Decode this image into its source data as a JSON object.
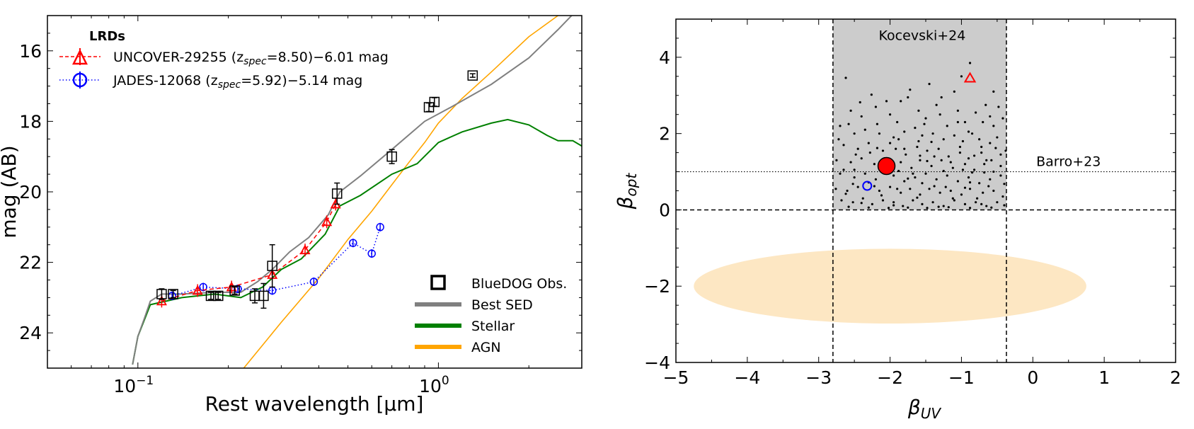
{
  "chart_data": [
    {
      "type": "line",
      "xlabel": "Rest wavelength [μm]",
      "ylabel": "mag (AB)",
      "xscale": "log",
      "xlim": [
        0.05,
        3.0
      ],
      "ylim": [
        25,
        15
      ],
      "yticks": [
        "16",
        "18",
        "20",
        "22",
        "24"
      ],
      "xticks": [
        {
          "v": 0.1,
          "label": "10",
          "exp": "−1"
        },
        {
          "v": 1.0,
          "label": "10",
          "exp": "0"
        }
      ],
      "legend_top": {
        "title": "LRDs",
        "entries": [
          {
            "pre": "UNCOVER-29255 (z",
            "sub": "spec",
            "post": "=8.50)−6.01 mag",
            "color": "#ff0000"
          },
          {
            "pre": "JADES-12068 (z",
            "sub": "spec",
            "post": "=5.92)−5.14 mag",
            "color": "#0000ff"
          }
        ]
      },
      "legend_bottom": [
        "BlueDOG Obs.",
        "Best SED",
        "Stellar",
        "AGN"
      ],
      "colors": {
        "best_sed": "#808080",
        "stellar": "#008000",
        "agn": "#ffa500",
        "uncover": "#ff0000",
        "jades": "#0000ff",
        "obs": "#000000"
      },
      "series": [
        {
          "key": "best_sed",
          "points": [
            [
              0.096,
              24.9
            ],
            [
              0.1,
              24.1
            ],
            [
              0.105,
              23.6
            ],
            [
              0.11,
              23.1
            ],
            [
              0.12,
              22.9
            ],
            [
              0.14,
              22.9
            ],
            [
              0.18,
              22.85
            ],
            [
              0.22,
              22.85
            ],
            [
              0.25,
              22.55
            ],
            [
              0.28,
              22.2
            ],
            [
              0.32,
              21.7
            ],
            [
              0.37,
              21.3
            ],
            [
              0.43,
              20.65
            ],
            [
              0.47,
              20.0
            ],
            [
              0.55,
              19.55
            ],
            [
              0.7,
              18.8
            ],
            [
              0.9,
              18.0
            ],
            [
              1.1,
              17.6
            ],
            [
              1.5,
              16.95
            ],
            [
              2.0,
              16.2
            ],
            [
              2.5,
              15.4
            ],
            [
              3.0,
              14.7
            ]
          ]
        },
        {
          "key": "stellar",
          "points": [
            [
              0.096,
              24.9
            ],
            [
              0.1,
              24.1
            ],
            [
              0.11,
              23.2
            ],
            [
              0.14,
              23.0
            ],
            [
              0.18,
              22.9
            ],
            [
              0.22,
              23.0
            ],
            [
              0.26,
              22.7
            ],
            [
              0.3,
              22.2
            ],
            [
              0.35,
              21.9
            ],
            [
              0.42,
              21.2
            ],
            [
              0.47,
              20.4
            ],
            [
              0.55,
              20.1
            ],
            [
              0.7,
              19.5
            ],
            [
              0.85,
              19.2
            ],
            [
              1.0,
              18.6
            ],
            [
              1.2,
              18.3
            ],
            [
              1.5,
              18.05
            ],
            [
              1.7,
              17.95
            ],
            [
              2.0,
              18.1
            ],
            [
              2.3,
              18.4
            ],
            [
              2.5,
              18.55
            ],
            [
              2.8,
              18.55
            ],
            [
              3.0,
              18.7
            ]
          ]
        },
        {
          "key": "agn",
          "points": [
            [
              0.225,
              25.0
            ],
            [
              0.3,
              23.7
            ],
            [
              0.4,
              22.45
            ],
            [
              0.5,
              21.35
            ],
            [
              0.6,
              20.55
            ],
            [
              0.7,
              19.8
            ],
            [
              0.8,
              19.15
            ],
            [
              0.9,
              18.6
            ],
            [
              1.0,
              18.05
            ],
            [
              1.2,
              17.35
            ],
            [
              1.5,
              16.6
            ],
            [
              2.0,
              15.6
            ],
            [
              2.5,
              15.0
            ],
            [
              3.0,
              14.5
            ]
          ]
        },
        {
          "key": "uncover",
          "name": "UNCOVER-29255",
          "points": [
            [
              0.12,
              23.1
            ],
            [
              0.158,
              22.8
            ],
            [
              0.205,
              22.7
            ],
            [
              0.28,
              22.35
            ],
            [
              0.36,
              21.65
            ],
            [
              0.425,
              20.85
            ],
            [
              0.455,
              20.35
            ]
          ]
        },
        {
          "key": "jades",
          "name": "JADES-12068",
          "points": [
            [
              0.13,
              22.95
            ],
            [
              0.165,
              22.7
            ],
            [
              0.215,
              22.75
            ],
            [
              0.28,
              22.8
            ],
            [
              0.385,
              22.55
            ],
            [
              0.52,
              21.45
            ],
            [
              0.6,
              21.75
            ],
            [
              0.64,
              21.0
            ]
          ]
        },
        {
          "key": "obs",
          "name": "BlueDOG Obs.",
          "points": [
            [
              0.12,
              22.9,
              0.15
            ],
            [
              0.131,
              22.9,
              0.1
            ],
            [
              0.175,
              22.95,
              0.1
            ],
            [
              0.185,
              22.95,
              0.1
            ],
            [
              0.21,
              22.8,
              0.1
            ],
            [
              0.245,
              22.95,
              0.2
            ],
            [
              0.262,
              22.95,
              0.35
            ],
            [
              0.28,
              22.1,
              0.6
            ],
            [
              0.46,
              20.05,
              0.3
            ],
            [
              0.7,
              19.0,
              0.2
            ],
            [
              0.93,
              17.6,
              0.12
            ],
            [
              0.97,
              17.45,
              0.12
            ],
            [
              1.3,
              16.7,
              0.05
            ]
          ]
        }
      ]
    },
    {
      "type": "scatter",
      "xlabel": "β",
      "xlabel_sub": "UV",
      "ylabel": "β",
      "ylabel_sub": "opt",
      "xlim": [
        -5,
        2
      ],
      "ylim": [
        -4,
        5
      ],
      "xticks": [
        "−5",
        "−4",
        "−3",
        "−2",
        "−1",
        "0",
        "1",
        "2"
      ],
      "yticks": [
        "−4",
        "−2",
        "0",
        "2",
        "4"
      ],
      "kocevski_region": {
        "x": [
          -2.8,
          -0.37
        ],
        "y": [
          0,
          5
        ],
        "label": "Kocevski+24",
        "color": "#cccccc"
      },
      "barro_line": {
        "y": 1.0,
        "label": "Barro+23"
      },
      "ellipse": {
        "cx": -2.0,
        "cy": -2.0,
        "rx": 2.75,
        "ry": 0.98,
        "color": "#fde7c3"
      },
      "large_point": {
        "x": -2.05,
        "y": 1.15,
        "color": "#ff0000"
      },
      "uncover_point": {
        "x": -0.88,
        "y": 3.45
      },
      "jades_point": {
        "x": -2.32,
        "y": 0.63
      },
      "scatter_points": [
        [
          -2.62,
          3.46
        ],
        [
          -2.26,
          3.02
        ],
        [
          -0.88,
          3.85
        ],
        [
          -1.45,
          3.3
        ],
        [
          -1.75,
          2.95
        ],
        [
          -1.35,
          2.75
        ],
        [
          -1.1,
          3.1
        ],
        [
          -2.55,
          2.6
        ],
        [
          -2.4,
          2.45
        ],
        [
          -2.2,
          2.7
        ],
        [
          -2.0,
          2.5
        ],
        [
          -1.9,
          2.3
        ],
        [
          -1.6,
          2.6
        ],
        [
          -1.5,
          2.4
        ],
        [
          -1.3,
          2.5
        ],
        [
          -1.2,
          2.2
        ],
        [
          -1.05,
          2.6
        ],
        [
          -0.95,
          2.3
        ],
        [
          -0.8,
          2.55
        ],
        [
          -0.7,
          2.3
        ],
        [
          -0.6,
          2.45
        ],
        [
          -0.55,
          2.2
        ],
        [
          -0.42,
          2.4
        ],
        [
          -2.7,
          2.2
        ],
        [
          -2.5,
          2.0
        ],
        [
          -2.35,
          2.1
        ],
        [
          -2.15,
          2.0
        ],
        [
          -1.95,
          1.9
        ],
        [
          -1.8,
          2.05
        ],
        [
          -1.65,
          2.15
        ],
        [
          -1.55,
          1.95
        ],
        [
          -1.4,
          2.0
        ],
        [
          -1.25,
          1.85
        ],
        [
          -1.1,
          1.95
        ],
        [
          -0.98,
          1.8
        ],
        [
          -0.85,
          2.0
        ],
        [
          -0.75,
          1.85
        ],
        [
          -0.6,
          1.75
        ],
        [
          -0.5,
          1.9
        ],
        [
          -2.65,
          1.7
        ],
        [
          -2.45,
          1.6
        ],
        [
          -2.3,
          1.75
        ],
        [
          -2.1,
          1.55
        ],
        [
          -1.92,
          1.6
        ],
        [
          -1.78,
          1.45
        ],
        [
          -1.62,
          1.65
        ],
        [
          -1.48,
          1.55
        ],
        [
          -1.32,
          1.6
        ],
        [
          -1.18,
          1.4
        ],
        [
          -1.02,
          1.5
        ],
        [
          -0.9,
          1.35
        ],
        [
          -0.72,
          1.5
        ],
        [
          -0.65,
          1.3
        ],
        [
          -0.45,
          1.45
        ],
        [
          -2.75,
          1.3
        ],
        [
          -2.55,
          1.25
        ],
        [
          -2.4,
          1.35
        ],
        [
          -2.22,
          1.2
        ],
        [
          -1.85,
          1.25
        ],
        [
          -1.7,
          1.1
        ],
        [
          -1.58,
          1.3
        ],
        [
          -1.42,
          1.15
        ],
        [
          -1.28,
          1.3
        ],
        [
          -1.12,
          1.1
        ],
        [
          -0.95,
          1.2
        ],
        [
          -0.82,
          1.05
        ],
        [
          -0.68,
          1.2
        ],
        [
          -0.55,
          1.0
        ],
        [
          -2.7,
          0.95
        ],
        [
          -2.5,
          0.85
        ],
        [
          -2.35,
          0.95
        ],
        [
          -2.2,
          0.8
        ],
        [
          -1.95,
          0.9
        ],
        [
          -1.8,
          0.75
        ],
        [
          -1.65,
          0.85
        ],
        [
          -1.5,
          0.95
        ],
        [
          -1.35,
          0.8
        ],
        [
          -1.2,
          0.9
        ],
        [
          -1.05,
          0.75
        ],
        [
          -0.9,
          0.85
        ],
        [
          -0.75,
          0.7
        ],
        [
          -0.6,
          0.8
        ],
        [
          -0.45,
          0.9
        ],
        [
          -2.76,
          0.55
        ],
        [
          -2.6,
          0.5
        ],
        [
          -2.45,
          0.6
        ],
        [
          -2.15,
          0.5
        ],
        [
          -2.0,
          0.6
        ],
        [
          -1.85,
          0.45
        ],
        [
          -1.72,
          0.55
        ],
        [
          -1.58,
          0.4
        ],
        [
          -1.45,
          0.55
        ],
        [
          -1.3,
          0.45
        ],
        [
          -1.15,
          0.5
        ],
        [
          -1.0,
          0.4
        ],
        [
          -0.88,
          0.55
        ],
        [
          -0.7,
          0.45
        ],
        [
          -0.55,
          0.5
        ],
        [
          -0.42,
          0.35
        ],
        [
          -2.68,
          0.25
        ],
        [
          -2.52,
          0.2
        ],
        [
          -2.38,
          0.3
        ],
        [
          -2.25,
          0.15
        ],
        [
          -2.1,
          0.25
        ],
        [
          -1.95,
          0.2
        ],
        [
          -1.82,
          0.1
        ],
        [
          -1.68,
          0.25
        ],
        [
          -1.55,
          0.15
        ],
        [
          -1.4,
          0.2
        ],
        [
          -1.25,
          0.1
        ],
        [
          -1.1,
          0.25
        ],
        [
          -0.95,
          0.15
        ],
        [
          -0.8,
          0.2
        ],
        [
          -0.65,
          0.1
        ],
        [
          -0.5,
          0.2
        ],
        [
          -0.4,
          0.12
        ],
        [
          -2.58,
          0.08
        ],
        [
          -2.3,
          0.06
        ],
        [
          -2.02,
          0.05
        ],
        [
          -1.75,
          0.06
        ],
        [
          -1.48,
          0.05
        ],
        [
          -1.18,
          0.07
        ],
        [
          -0.88,
          0.05
        ],
        [
          -0.58,
          0.06
        ],
        [
          -1.88,
          1.85
        ],
        [
          -2.08,
          1.35
        ],
        [
          -1.6,
          1.8
        ],
        [
          -1.38,
          1.4
        ],
        [
          -0.72,
          1.65
        ],
        [
          -2.28,
          1.5
        ],
        [
          -1.05,
          2.3
        ],
        [
          -0.38,
          1.55
        ],
        [
          -2.72,
          1.85
        ],
        [
          -0.48,
          2.7
        ],
        [
          -1.85,
          2.85
        ],
        [
          -1.0,
          3.5
        ],
        [
          -2.5,
          1.05
        ],
        [
          -1.68,
          0.95
        ],
        [
          -1.22,
          0.6
        ],
        [
          -0.78,
          0.3
        ],
        [
          -2.12,
          0.38
        ],
        [
          -1.55,
          0.7
        ],
        [
          -0.98,
          1.05
        ],
        [
          -2.05,
          2.85
        ],
        [
          -1.28,
          2.95
        ],
        [
          -0.66,
          2.75
        ],
        [
          -2.42,
          2.82
        ],
        [
          -1.72,
          3.15
        ],
        [
          -0.55,
          3.1
        ],
        [
          -2.62,
          0.42
        ],
        [
          -1.95,
          0.12
        ],
        [
          -1.12,
          0.3
        ],
        [
          -0.62,
          0.62
        ],
        [
          -2.48,
          1.45
        ],
        [
          -1.8,
          1.6
        ],
        [
          -1.02,
          1.65
        ],
        [
          -0.45,
          1.15
        ],
        [
          -2.18,
          2.25
        ],
        [
          -1.52,
          2.25
        ],
        [
          -0.9,
          2.05
        ],
        [
          -2.58,
          2.25
        ],
        [
          -1.42,
          1.78
        ],
        [
          -0.68,
          0.98
        ],
        [
          -2.3,
          0.72
        ],
        [
          -1.62,
          0.32
        ],
        [
          -0.88,
          0.72
        ],
        [
          -2.0,
          1.75
        ],
        [
          -1.15,
          1.25
        ],
        [
          -0.52,
          1.62
        ],
        [
          -2.4,
          0.18
        ],
        [
          -1.32,
          0.08
        ],
        [
          -0.72,
          0.15
        ],
        [
          -2.65,
          1.05
        ],
        [
          -1.88,
          1.02
        ],
        [
          -1.48,
          1.28
        ],
        [
          -0.82,
          1.42
        ],
        [
          -2.18,
          1.62
        ],
        [
          -1.58,
          1.42
        ],
        [
          -0.95,
          0.58
        ],
        [
          -2.22,
          0.62
        ],
        [
          -1.75,
          0.82
        ],
        [
          -1.25,
          1.02
        ],
        [
          -0.58,
          1.3
        ],
        [
          -2.52,
          0.68
        ],
        [
          -1.9,
          0.55
        ],
        [
          -1.38,
          0.62
        ],
        [
          -0.85,
          0.98
        ],
        [
          -0.4,
          0.68
        ]
      ]
    }
  ]
}
